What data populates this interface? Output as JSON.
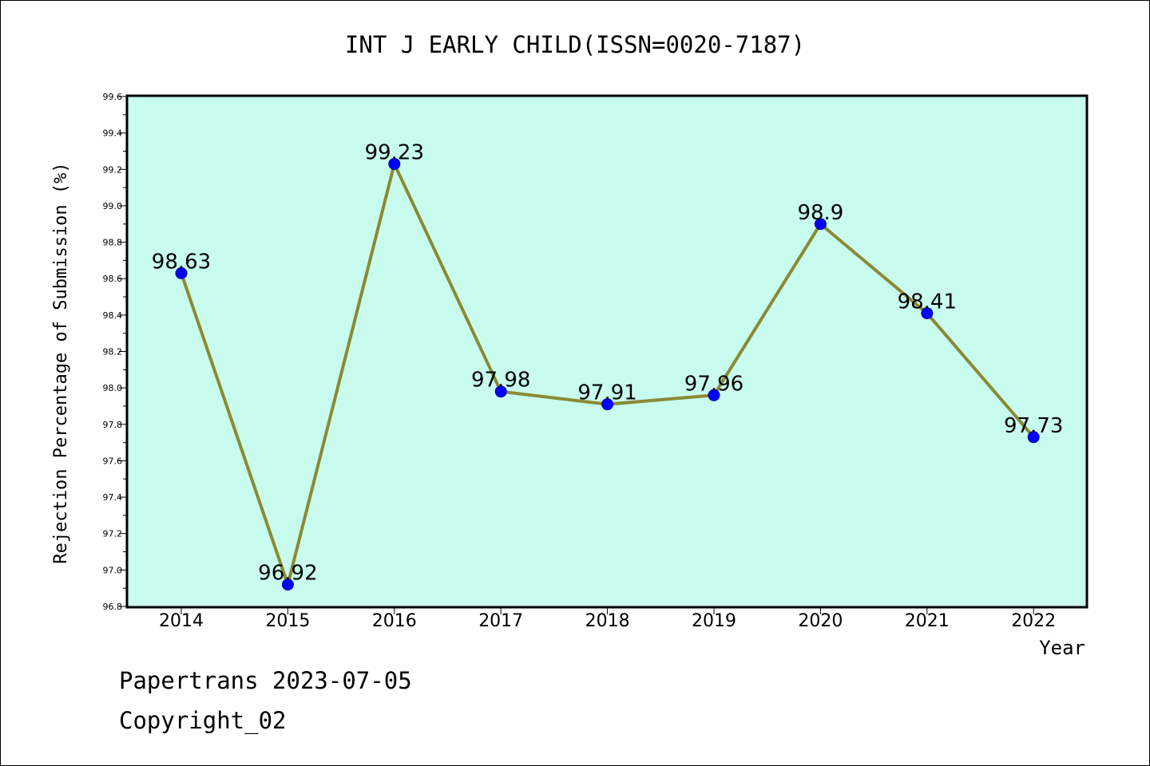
{
  "chart_data": {
    "type": "line",
    "title": "INT J EARLY CHILD(ISSN=0020-7187)",
    "xlabel": "Year",
    "ylabel": "Rejection Percentage of Submission (%)",
    "categories": [
      "2014",
      "2015",
      "2016",
      "2017",
      "2018",
      "2019",
      "2020",
      "2021",
      "2022"
    ],
    "values": [
      98.63,
      96.92,
      99.23,
      97.98,
      97.91,
      97.96,
      98.9,
      98.41,
      97.73
    ],
    "data_labels": [
      "98.63",
      "96.92",
      "99.23",
      "97.98",
      "97.91",
      "97.96",
      "98.9",
      "98.41",
      "97.73"
    ],
    "ylim": [
      96.8,
      99.6
    ],
    "yticks": [
      "96.8",
      "97.0",
      "97.2",
      "97.4",
      "97.6",
      "97.8",
      "98.0",
      "98.2",
      "98.4",
      "98.6",
      "98.8",
      "99.0",
      "99.2",
      "99.4",
      "99.6"
    ],
    "grid": false,
    "colors": {
      "plot_background": "#c8fcee",
      "line": "#8a8a34",
      "marker": "#0000ff"
    }
  },
  "footer": {
    "line1": "Papertrans 2023-07-05",
    "line2": "Copyright_02"
  }
}
